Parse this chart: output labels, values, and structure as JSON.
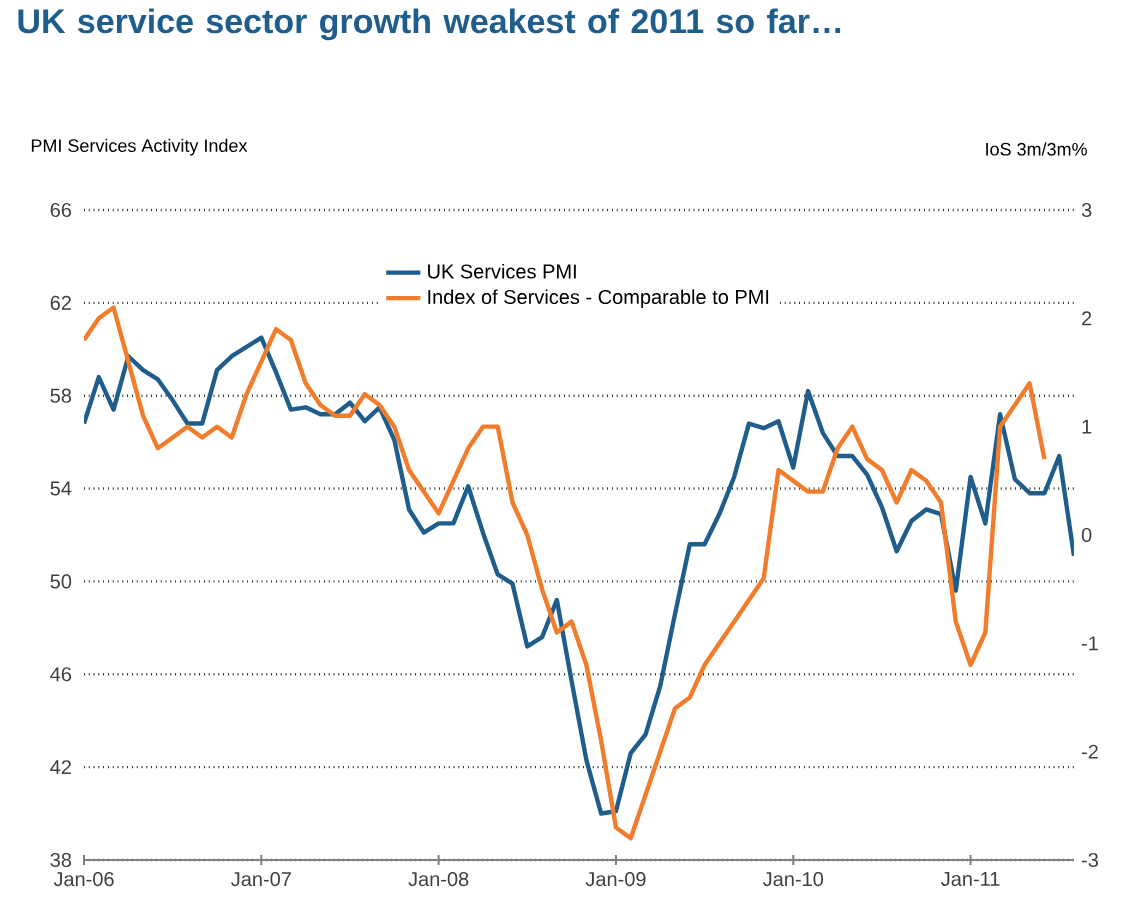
{
  "chart_data": {
    "type": "line",
    "title": "UK service sector growth weakest of 2011 so far…",
    "ylabel": "PMI Services Activity Index",
    "y2label": "IoS 3m/3m%",
    "x": [
      "2006-01",
      "2006-02",
      "2006-03",
      "2006-04",
      "2006-05",
      "2006-06",
      "2006-07",
      "2006-08",
      "2006-09",
      "2006-10",
      "2006-11",
      "2006-12",
      "2007-01",
      "2007-02",
      "2007-03",
      "2007-04",
      "2007-05",
      "2007-06",
      "2007-07",
      "2007-08",
      "2007-09",
      "2007-10",
      "2007-11",
      "2007-12",
      "2008-01",
      "2008-02",
      "2008-03",
      "2008-04",
      "2008-05",
      "2008-06",
      "2008-07",
      "2008-08",
      "2008-09",
      "2008-10",
      "2008-11",
      "2008-12",
      "2009-01",
      "2009-02",
      "2009-03",
      "2009-04",
      "2009-05",
      "2009-06",
      "2009-07",
      "2009-08",
      "2009-09",
      "2009-10",
      "2009-11",
      "2009-12",
      "2010-01",
      "2010-02",
      "2010-03",
      "2010-04",
      "2010-05",
      "2010-06",
      "2010-07",
      "2010-08",
      "2010-09",
      "2010-10",
      "2010-11",
      "2010-12",
      "2011-01",
      "2011-02",
      "2011-03",
      "2011-04",
      "2011-05",
      "2011-06",
      "2011-07",
      "2011-08"
    ],
    "series": [
      {
        "name": "UK Services PMI",
        "color": "#1f5d8c",
        "values": [
          56.8,
          58.8,
          57.4,
          59.7,
          59.1,
          58.7,
          57.8,
          56.8,
          56.8,
          59.1,
          59.7,
          60.1,
          60.5,
          59.0,
          57.4,
          57.5,
          57.2,
          57.2,
          57.7,
          56.9,
          57.5,
          56.1,
          53.1,
          52.1,
          52.5,
          52.5,
          54.1,
          52.1,
          50.3,
          49.9,
          47.2,
          47.6,
          49.2,
          45.7,
          42.3,
          40.0,
          40.1,
          42.6,
          43.4,
          45.5,
          48.6,
          51.6,
          51.6,
          52.9,
          54.5,
          56.8,
          56.6,
          56.9,
          54.9,
          58.2,
          56.4,
          55.4,
          55.4,
          54.6,
          53.2,
          51.3,
          52.6,
          53.1,
          52.9,
          49.6,
          54.5,
          52.5,
          57.2,
          54.4,
          53.8,
          53.8,
          55.4,
          51.1
        ]
      },
      {
        "name": "Index of Services - Comparable to PMI",
        "color": "#f07c2c",
        "axis": "y2",
        "values": [
          1.8,
          2.0,
          2.1,
          1.6,
          1.1,
          0.8,
          0.9,
          1.0,
          0.9,
          1.0,
          0.9,
          1.3,
          1.6,
          1.9,
          1.8,
          1.4,
          1.2,
          1.1,
          1.1,
          1.3,
          1.2,
          1.0,
          0.6,
          0.4,
          0.2,
          0.5,
          0.8,
          1.0,
          1.0,
          0.3,
          0.0,
          -0.5,
          -0.9,
          -0.8,
          -1.2,
          -1.9,
          -2.7,
          -2.8,
          -2.4,
          -2.0,
          -1.6,
          -1.5,
          -1.2,
          -1.0,
          -0.8,
          -0.6,
          -0.4,
          0.6,
          0.5,
          0.4,
          0.4,
          0.8,
          1.0,
          0.7,
          0.6,
          0.3,
          0.6,
          0.5,
          0.3,
          -0.8,
          -1.2,
          -0.9,
          1.0,
          1.2,
          1.4,
          0.7,
          null,
          null
        ]
      }
    ],
    "xlim": [
      "2006-01",
      "2011-08"
    ],
    "xticks": [
      {
        "value": "2006-01",
        "label": "Jan-06"
      },
      {
        "value": "2007-01",
        "label": "Jan-07"
      },
      {
        "value": "2008-01",
        "label": "Jan-08"
      },
      {
        "value": "2009-01",
        "label": "Jan-09"
      },
      {
        "value": "2010-01",
        "label": "Jan-10"
      },
      {
        "value": "2011-01",
        "label": "Jan-11"
      }
    ],
    "ylim": [
      38,
      66
    ],
    "yticks": [
      38,
      42,
      46,
      50,
      54,
      58,
      62,
      66
    ],
    "y2lim": [
      -3,
      3
    ],
    "y2ticks": [
      -3,
      -2,
      -1,
      0,
      1,
      2,
      3
    ],
    "grid": "y",
    "legend": "top"
  }
}
